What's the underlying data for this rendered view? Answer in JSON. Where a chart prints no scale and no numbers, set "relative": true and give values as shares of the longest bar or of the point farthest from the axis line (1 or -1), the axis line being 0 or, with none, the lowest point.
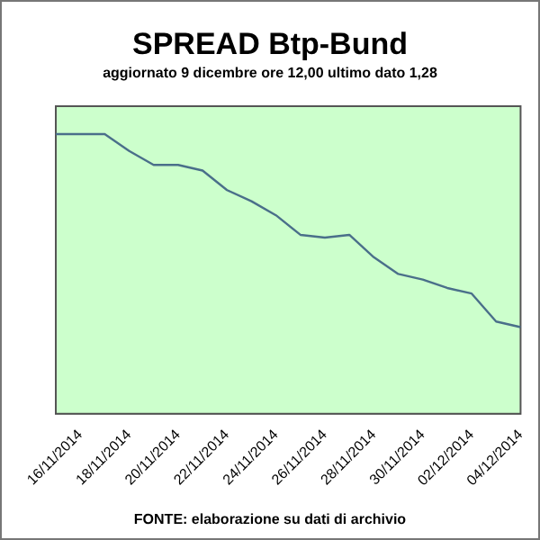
{
  "chart_data": {
    "type": "line",
    "title": "SPREAD Btp-Bund",
    "subtitle": "aggiornato 9 dicembre ore 12,00  ultimo dato  1,28",
    "annotations": [
      "FONTE: elaborazione su dati di archivio"
    ],
    "relative": true,
    "categories": [
      null,
      "16/11/2014",
      null,
      "18/11/2014",
      null,
      "20/11/2014",
      null,
      "22/11/2014",
      null,
      "24/11/2014",
      null,
      "26/11/2014",
      null,
      "28/11/2014",
      null,
      "30/11/2014",
      null,
      "02/12/2014",
      null,
      "04/12/2014"
    ],
    "series": [
      {
        "color": "#4a6f8a",
        "values": [
          1.0,
          1.0,
          1.0,
          0.94,
          0.89,
          0.89,
          0.87,
          0.8,
          0.76,
          0.71,
          0.64,
          0.63,
          0.64,
          0.56,
          0.5,
          0.48,
          0.45,
          0.43,
          0.33,
          0.31
        ]
      }
    ],
    "marker": "none",
    "line_style": "solid",
    "legend": false,
    "grid": false
  }
}
